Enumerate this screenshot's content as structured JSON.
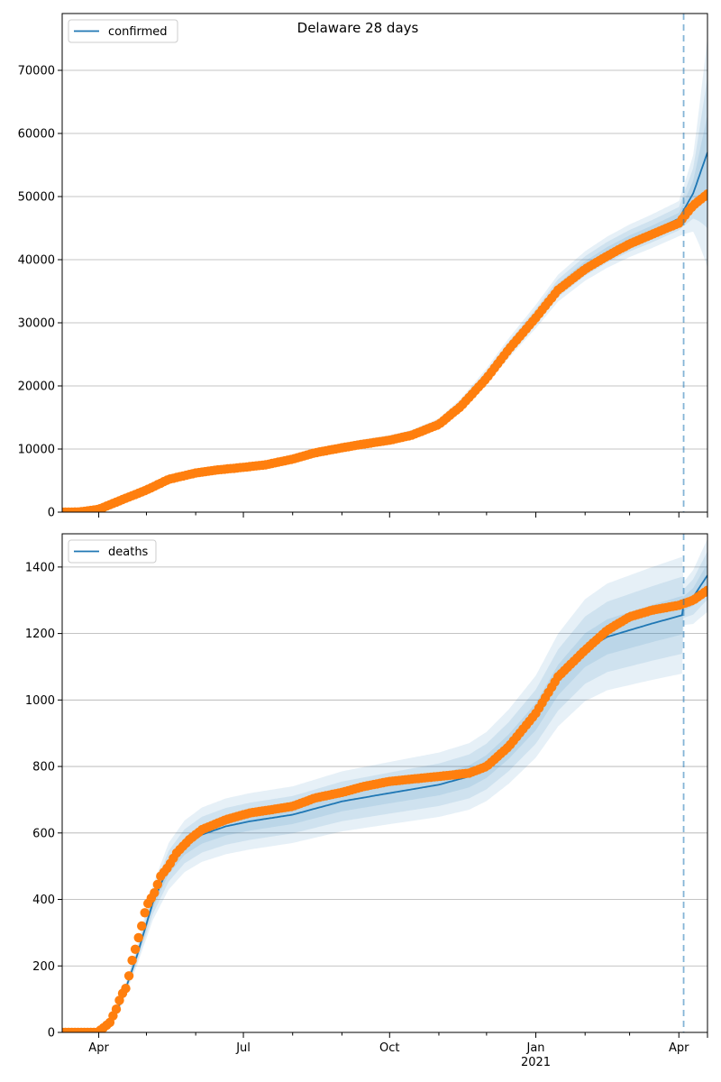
{
  "figure_title": "Delaware 28 days",
  "colors": {
    "model_line": "#1f77b4",
    "band": "#1f77b4",
    "observed": "#ff7f0e",
    "cutoff": "#1f77b4",
    "grid": "#b0b0b0"
  },
  "x_axis": {
    "start": "2020-03-09",
    "end": "2021-04-19",
    "major_ticks": [
      {
        "date": "2020-04-01",
        "label": "Apr"
      },
      {
        "date": "2020-07-01",
        "label": "Jul"
      },
      {
        "date": "2020-10-01",
        "label": "Oct"
      },
      {
        "date": "2021-01-01",
        "label": "Jan"
      },
      {
        "date": "2021-04-01",
        "label": "Apr"
      }
    ],
    "year_label": {
      "date": "2021-01-01",
      "label": "2021"
    },
    "minor_ticks": [
      "2020-05-01",
      "2020-06-01",
      "2020-08-01",
      "2020-09-01",
      "2020-11-01",
      "2020-12-01",
      "2021-02-01",
      "2021-03-01"
    ],
    "forecast_start": "2021-04-04"
  },
  "chart_data": [
    {
      "type": "line",
      "legend": "confirmed",
      "legend_position": "top-left",
      "grid": "y",
      "ylim": [
        0,
        79000
      ],
      "yticks": [
        0,
        10000,
        20000,
        30000,
        40000,
        50000,
        60000,
        70000
      ],
      "model": [
        [
          "2020-03-09",
          0
        ],
        [
          "2020-03-20",
          50
        ],
        [
          "2020-04-01",
          400
        ],
        [
          "2020-04-15",
          1800
        ],
        [
          "2020-05-01",
          3600
        ],
        [
          "2020-05-15",
          5300
        ],
        [
          "2020-06-01",
          6300
        ],
        [
          "2020-06-15",
          6800
        ],
        [
          "2020-07-01",
          7200
        ],
        [
          "2020-07-15",
          7600
        ],
        [
          "2020-08-01",
          8500
        ],
        [
          "2020-08-15",
          9500
        ],
        [
          "2020-09-01",
          10300
        ],
        [
          "2020-09-15",
          10900
        ],
        [
          "2020-10-01",
          11500
        ],
        [
          "2020-10-15",
          12300
        ],
        [
          "2020-11-01",
          14000
        ],
        [
          "2020-11-15",
          17000
        ],
        [
          "2020-12-01",
          21500
        ],
        [
          "2020-12-15",
          26000
        ],
        [
          "2021-01-01",
          31000
        ],
        [
          "2021-01-15",
          35500
        ],
        [
          "2021-02-01",
          39000
        ],
        [
          "2021-02-15",
          41200
        ],
        [
          "2021-03-01",
          43000
        ],
        [
          "2021-03-15",
          44500
        ],
        [
          "2021-04-01",
          46500
        ],
        [
          "2021-04-10",
          50500
        ],
        [
          "2021-04-19",
          57000
        ]
      ],
      "band_widths": [
        [
          "2020-03-09",
          0.0
        ],
        [
          "2020-06-01",
          0.06
        ],
        [
          "2020-10-01",
          0.06
        ],
        [
          "2021-01-01",
          0.06
        ],
        [
          "2021-04-01",
          0.06
        ],
        [
          "2021-04-10",
          0.12
        ],
        [
          "2021-04-19",
          0.32
        ]
      ],
      "observed": [
        [
          "2020-03-09",
          0
        ],
        [
          "2020-03-20",
          30
        ],
        [
          "2020-04-01",
          450
        ],
        [
          "2020-04-15",
          1900
        ],
        [
          "2020-05-01",
          3500
        ],
        [
          "2020-05-15",
          5200
        ],
        [
          "2020-06-01",
          6200
        ],
        [
          "2020-06-15",
          6700
        ],
        [
          "2020-07-01",
          7100
        ],
        [
          "2020-07-15",
          7500
        ],
        [
          "2020-08-01",
          8400
        ],
        [
          "2020-08-15",
          9400
        ],
        [
          "2020-09-01",
          10200
        ],
        [
          "2020-09-15",
          10800
        ],
        [
          "2020-10-01",
          11400
        ],
        [
          "2020-10-15",
          12200
        ],
        [
          "2020-11-01",
          13900
        ],
        [
          "2020-11-15",
          16800
        ],
        [
          "2020-12-01",
          21200
        ],
        [
          "2020-12-15",
          25800
        ],
        [
          "2021-01-01",
          30800
        ],
        [
          "2021-01-15",
          35200
        ],
        [
          "2021-02-01",
          38500
        ],
        [
          "2021-02-15",
          40600
        ],
        [
          "2021-03-01",
          42500
        ],
        [
          "2021-03-15",
          44000
        ],
        [
          "2021-04-01",
          45800
        ],
        [
          "2021-04-10",
          48600
        ],
        [
          "2021-04-19",
          50400
        ]
      ]
    },
    {
      "type": "line",
      "legend": "deaths",
      "legend_position": "top-left",
      "grid": "y",
      "ylim": [
        0,
        1500
      ],
      "yticks": [
        0,
        200,
        400,
        600,
        800,
        1000,
        1200,
        1400
      ],
      "model": [
        [
          "2020-03-09",
          0
        ],
        [
          "2020-03-25",
          2
        ],
        [
          "2020-04-05",
          15
        ],
        [
          "2020-04-15",
          90
        ],
        [
          "2020-04-25",
          230
        ],
        [
          "2020-05-05",
          390
        ],
        [
          "2020-05-15",
          500
        ],
        [
          "2020-05-25",
          560
        ],
        [
          "2020-06-05",
          595
        ],
        [
          "2020-06-20",
          620
        ],
        [
          "2020-07-05",
          635
        ],
        [
          "2020-08-01",
          655
        ],
        [
          "2020-09-01",
          695
        ],
        [
          "2020-10-01",
          720
        ],
        [
          "2020-11-01",
          745
        ],
        [
          "2020-11-20",
          770
        ],
        [
          "2020-12-01",
          800
        ],
        [
          "2020-12-15",
          860
        ],
        [
          "2021-01-01",
          950
        ],
        [
          "2021-01-15",
          1060
        ],
        [
          "2021-02-01",
          1150
        ],
        [
          "2021-02-15",
          1190
        ],
        [
          "2021-03-01",
          1210
        ],
        [
          "2021-03-15",
          1230
        ],
        [
          "2021-04-03",
          1255
        ],
        [
          "2021-04-04",
          1290
        ],
        [
          "2021-04-10",
          1310
        ],
        [
          "2021-04-19",
          1375
        ]
      ],
      "band_widths": [
        [
          "2020-03-09",
          0.0
        ],
        [
          "2020-04-10",
          0.12
        ],
        [
          "2020-05-15",
          0.14
        ],
        [
          "2020-08-01",
          0.13
        ],
        [
          "2020-11-01",
          0.13
        ],
        [
          "2021-01-01",
          0.13
        ],
        [
          "2021-04-03",
          0.14
        ],
        [
          "2021-04-04",
          0.05
        ],
        [
          "2021-04-19",
          0.08
        ]
      ],
      "observed": [
        [
          "2020-03-09",
          0
        ],
        [
          "2020-03-31",
          0
        ],
        [
          "2020-04-03",
          10
        ],
        [
          "2020-04-08",
          30
        ],
        [
          "2020-04-12",
          70
        ],
        [
          "2020-04-15",
          110
        ],
        [
          "2020-04-19",
          140
        ],
        [
          "2020-04-21",
          200
        ],
        [
          "2020-04-24",
          250
        ],
        [
          "2020-04-28",
          320
        ],
        [
          "2020-05-01",
          380
        ],
        [
          "2020-05-06",
          420
        ],
        [
          "2020-05-10",
          470
        ],
        [
          "2020-05-15",
          500
        ],
        [
          "2020-05-20",
          540
        ],
        [
          "2020-05-28",
          580
        ],
        [
          "2020-06-05",
          610
        ],
        [
          "2020-06-20",
          640
        ],
        [
          "2020-07-05",
          660
        ],
        [
          "2020-08-01",
          680
        ],
        [
          "2020-08-15",
          705
        ],
        [
          "2020-09-01",
          722
        ],
        [
          "2020-09-15",
          740
        ],
        [
          "2020-10-01",
          755
        ],
        [
          "2020-10-15",
          762
        ],
        [
          "2020-11-01",
          770
        ],
        [
          "2020-11-20",
          780
        ],
        [
          "2020-12-01",
          800
        ],
        [
          "2020-12-15",
          860
        ],
        [
          "2021-01-01",
          960
        ],
        [
          "2021-01-15",
          1070
        ],
        [
          "2021-02-01",
          1150
        ],
        [
          "2021-02-15",
          1210
        ],
        [
          "2021-03-01",
          1250
        ],
        [
          "2021-03-15",
          1270
        ],
        [
          "2021-04-01",
          1285
        ],
        [
          "2021-04-10",
          1300
        ],
        [
          "2021-04-19",
          1330
        ]
      ]
    }
  ]
}
